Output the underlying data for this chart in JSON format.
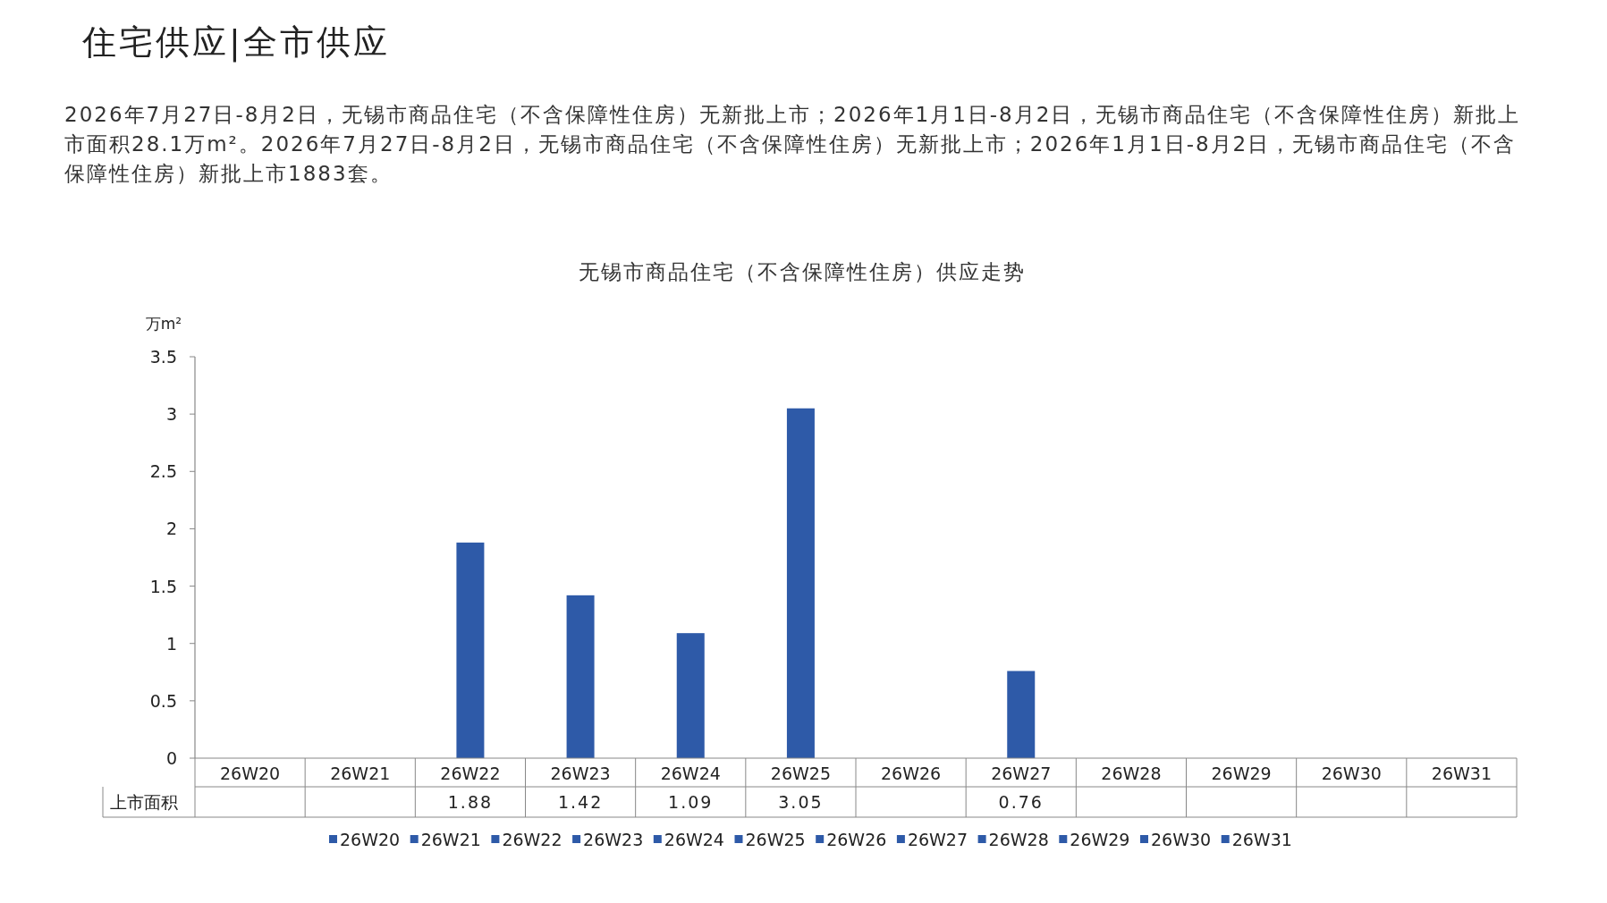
{
  "chart_data": {
    "type": "bar",
    "title": "无锡市商品住宅（不含保障性住房）供应走势",
    "ylabel": "万m²",
    "categories": [
      "26W20",
      "26W21",
      "26W22",
      "26W23",
      "26W24",
      "26W25",
      "26W26",
      "26W27",
      "26W28",
      "26W29",
      "26W30",
      "26W31"
    ],
    "series": [
      {
        "name": "上市面积",
        "colors": [
          "#2e5aa8",
          "#2e5aa8",
          "#2e5aa8",
          "#2e5aa8",
          "#2e5aa8",
          "#2e5aa8",
          "#2e5aa8",
          "#2e5aa8",
          "#2e5aa8",
          "#2e5aa8",
          "#2e5aa8",
          "#2e5aa8"
        ],
        "values": [
          null,
          null,
          1.88,
          1.42,
          1.09,
          3.05,
          null,
          0.76,
          null,
          null,
          null,
          null
        ]
      }
    ],
    "ylim": [
      0,
      3.5
    ],
    "yticks": [
      0,
      0.5,
      1,
      1.5,
      2,
      2.5,
      3,
      3.5
    ],
    "data_labels": true,
    "legend": "bottom",
    "grid": false,
    "annotations": [
      "住宅供应|全市供应",
      "2026年7月27日-8月2日，无锡市商品住宅（不含保障性住房）无新批上市；2026年1月1日-8月2日，无锡市商品住宅（不含保障性住房）新批上市面积28.1万m²。2026年7月27日-8月2日，无锡市商品住宅（不含保障性住房）无新批上市；2026年1月1日-8月2日，无锡市商品住宅（不含保障性住房）新批上市1883套。"
    ]
  }
}
